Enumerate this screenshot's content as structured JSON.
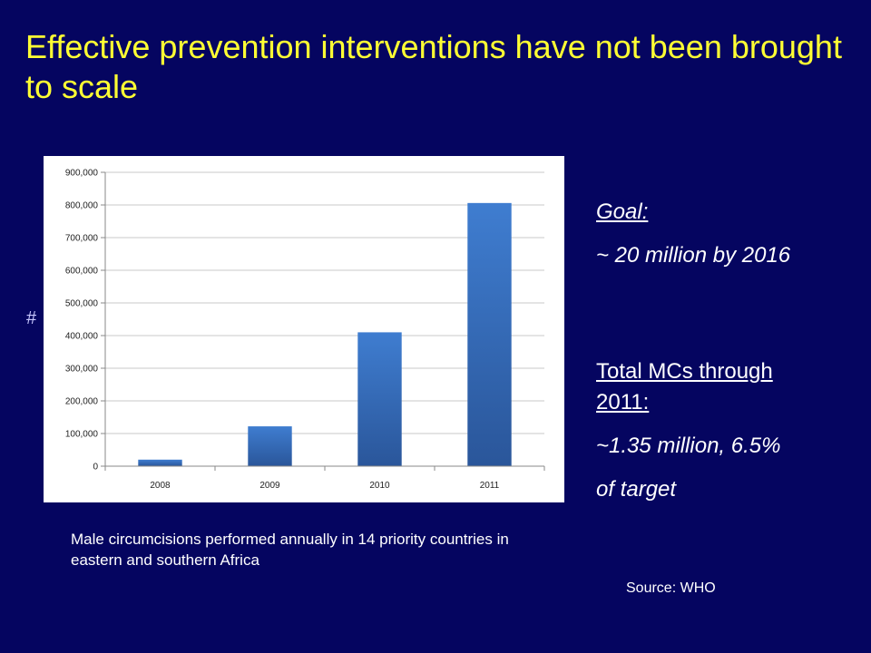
{
  "title": "Effective prevention interventions have not been brought to scale",
  "hash_symbol": "#",
  "chart_data": {
    "type": "bar",
    "categories": [
      "2008",
      "2009",
      "2010",
      "2011"
    ],
    "values": [
      20000,
      122000,
      410000,
      806000
    ],
    "ylim": [
      0,
      900000
    ],
    "yticks": [
      0,
      100000,
      200000,
      300000,
      400000,
      500000,
      600000,
      700000,
      800000,
      900000
    ],
    "ytick_labels": [
      "0",
      "100,000",
      "200,000",
      "300,000",
      "400,000",
      "500,000",
      "600,000",
      "700,000",
      "800,000",
      "900,000"
    ],
    "grid": true,
    "bar_color": "#3b6fb8",
    "title": "",
    "xlabel": "",
    "ylabel": ""
  },
  "caption": "Male circumcisions performed annually in 14 priority countries in eastern and southern Africa",
  "goal": {
    "heading": "Goal:",
    "value": "~ 20 million by 2016"
  },
  "total": {
    "heading_line1": "Total MCs through",
    "heading_line2": "2011:",
    "value_line1": "~1.35 million, 6.5%",
    "value_line2": "of target"
  },
  "source": "Source: WHO",
  "colors": {
    "background": "#050560",
    "title": "#ffff33",
    "text": "#ffffff"
  }
}
